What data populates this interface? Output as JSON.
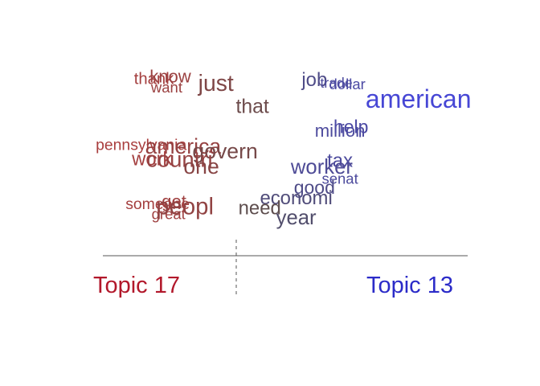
{
  "chart_data": {
    "type": "scatter",
    "title": "",
    "xlabel": "",
    "ylabel": "",
    "topics": {
      "left": {
        "label": "Topic 17",
        "color": "#b2182b"
      },
      "right": {
        "label": "Topic 13",
        "color": "#2b2bc8"
      }
    },
    "xlim": [
      -1,
      1
    ],
    "ylim": [
      0,
      1
    ],
    "points": [
      {
        "word": "thank",
        "x": -0.72,
        "y": 0.93,
        "weight": 0.35,
        "lean": -0.85
      },
      {
        "word": "know",
        "x": -0.63,
        "y": 0.94,
        "weight": 0.45,
        "lean": -0.75
      },
      {
        "word": "want",
        "x": -0.65,
        "y": 0.88,
        "weight": 0.25,
        "lean": -0.75
      },
      {
        "word": "just",
        "x": -0.38,
        "y": 0.89,
        "weight": 0.8,
        "lean": -0.45
      },
      {
        "word": "that",
        "x": -0.18,
        "y": 0.76,
        "weight": 0.6,
        "lean": -0.25
      },
      {
        "word": "job",
        "x": 0.16,
        "y": 0.92,
        "weight": 0.55,
        "lean": 0.4
      },
      {
        "word": "trade",
        "x": 0.28,
        "y": 0.91,
        "weight": 0.2,
        "lean": 0.55
      },
      {
        "word": "dollar",
        "x": 0.34,
        "y": 0.9,
        "weight": 0.25,
        "lean": 0.6
      },
      {
        "word": "american",
        "x": 0.73,
        "y": 0.79,
        "weight": 1.0,
        "lean": 0.95
      },
      {
        "word": "million",
        "x": 0.3,
        "y": 0.62,
        "weight": 0.45,
        "lean": 0.55
      },
      {
        "word": "help",
        "x": 0.36,
        "y": 0.64,
        "weight": 0.5,
        "lean": 0.6
      },
      {
        "word": "pennsylvania",
        "x": -0.79,
        "y": 0.54,
        "weight": 0.3,
        "lean": -0.9
      },
      {
        "word": "america",
        "x": -0.56,
        "y": 0.52,
        "weight": 0.7,
        "lean": -0.7
      },
      {
        "word": "govern",
        "x": -0.33,
        "y": 0.49,
        "weight": 0.7,
        "lean": -0.35
      },
      {
        "word": "work",
        "x": -0.73,
        "y": 0.45,
        "weight": 0.55,
        "lean": -0.85
      },
      {
        "word": "countri",
        "x": -0.58,
        "y": 0.44,
        "weight": 0.75,
        "lean": -0.7
      },
      {
        "word": "one",
        "x": -0.46,
        "y": 0.4,
        "weight": 0.7,
        "lean": -0.55
      },
      {
        "word": "tax",
        "x": 0.3,
        "y": 0.44,
        "weight": 0.55,
        "lean": 0.55
      },
      {
        "word": "worker",
        "x": 0.2,
        "y": 0.4,
        "weight": 0.65,
        "lean": 0.5
      },
      {
        "word": "senat",
        "x": 0.3,
        "y": 0.34,
        "weight": 0.25,
        "lean": 0.55
      },
      {
        "word": "good",
        "x": 0.16,
        "y": 0.28,
        "weight": 0.5,
        "lean": 0.4
      },
      {
        "word": "someone",
        "x": -0.7,
        "y": 0.19,
        "weight": 0.3,
        "lean": -0.85
      },
      {
        "word": "get",
        "x": -0.61,
        "y": 0.2,
        "weight": 0.45,
        "lean": -0.8
      },
      {
        "word": "great",
        "x": -0.64,
        "y": 0.13,
        "weight": 0.25,
        "lean": -0.8
      },
      {
        "word": "peopl",
        "x": -0.55,
        "y": 0.16,
        "weight": 0.85,
        "lean": -0.65
      },
      {
        "word": "economi",
        "x": 0.06,
        "y": 0.22,
        "weight": 0.55,
        "lean": 0.3
      },
      {
        "word": "need",
        "x": -0.14,
        "y": 0.16,
        "weight": 0.55,
        "lean": -0.1
      },
      {
        "word": "year",
        "x": 0.06,
        "y": 0.1,
        "weight": 0.65,
        "lean": 0.2
      }
    ]
  }
}
